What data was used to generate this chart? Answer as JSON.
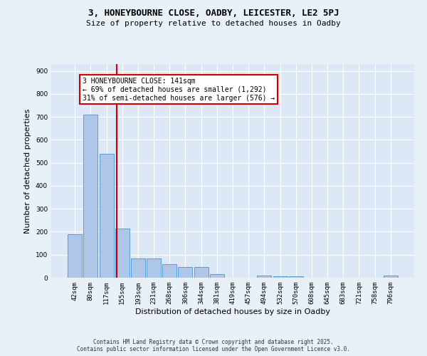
{
  "title_line1": "3, HONEYBOURNE CLOSE, OADBY, LEICESTER, LE2 5PJ",
  "title_line2": "Size of property relative to detached houses in Oadby",
  "xlabel": "Distribution of detached houses by size in Oadby",
  "ylabel": "Number of detached properties",
  "categories": [
    "42sqm",
    "80sqm",
    "117sqm",
    "155sqm",
    "193sqm",
    "231sqm",
    "268sqm",
    "306sqm",
    "344sqm",
    "381sqm",
    "419sqm",
    "457sqm",
    "494sqm",
    "532sqm",
    "570sqm",
    "608sqm",
    "645sqm",
    "683sqm",
    "721sqm",
    "758sqm",
    "796sqm"
  ],
  "values": [
    190,
    710,
    540,
    215,
    85,
    85,
    60,
    45,
    45,
    15,
    0,
    0,
    10,
    5,
    5,
    0,
    0,
    0,
    0,
    0,
    10
  ],
  "bar_color": "#aec6e8",
  "bar_edge_color": "#5b9bd5",
  "vline_color": "#cc0000",
  "annotation_text": "3 HONEYBOURNE CLOSE: 141sqm\n← 69% of detached houses are smaller (1,292)\n31% of semi-detached houses are larger (576) →",
  "annotation_box_color": "#ffffff",
  "annotation_box_edge": "#cc0000",
  "ylim": [
    0,
    930
  ],
  "yticks": [
    0,
    100,
    200,
    300,
    400,
    500,
    600,
    700,
    800,
    900
  ],
  "footer_text": "Contains HM Land Registry data © Crown copyright and database right 2025.\nContains public sector information licensed under the Open Government Licence v3.0.",
  "background_color": "#e8f0f8",
  "plot_bg_color": "#dce8f5",
  "grid_color": "#ffffff",
  "title_fontsize": 9,
  "subtitle_fontsize": 8,
  "tick_fontsize": 6.5,
  "label_fontsize": 8,
  "footer_fontsize": 5.5
}
